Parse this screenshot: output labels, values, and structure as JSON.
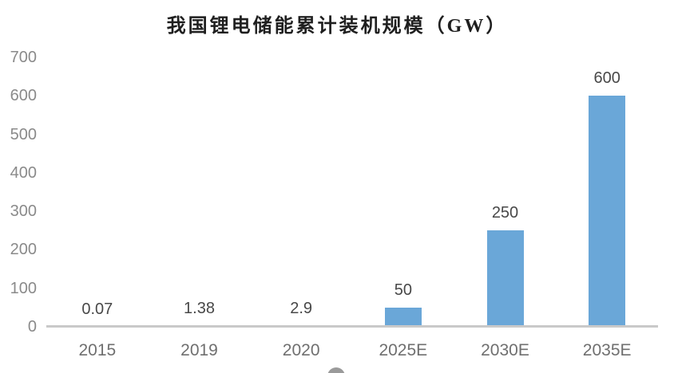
{
  "chart_data": {
    "type": "bar",
    "title": "我国锂电储能累计装机规模（GW）",
    "categories": [
      "2015",
      "2019",
      "2020",
      "2025E",
      "2030E",
      "2035E"
    ],
    "values": [
      0.07,
      1.38,
      2.9,
      50,
      250,
      600
    ],
    "data_labels": [
      "0.07",
      "1.38",
      "2.9",
      "50",
      "250",
      "600"
    ],
    "xlabel": "",
    "ylabel": "",
    "ylim": [
      0,
      700
    ],
    "yticks": [
      0,
      100,
      200,
      300,
      400,
      500,
      600,
      700
    ],
    "grid": false,
    "legend": "none",
    "bar_color": "#6aa7d8",
    "axis_line_color": "#c9c9c9",
    "ytick_color": "#8a8a8a",
    "xtick_color": "#6f6f6f",
    "data_label_color": "#484848",
    "title_color": "#1f1f1f"
  }
}
